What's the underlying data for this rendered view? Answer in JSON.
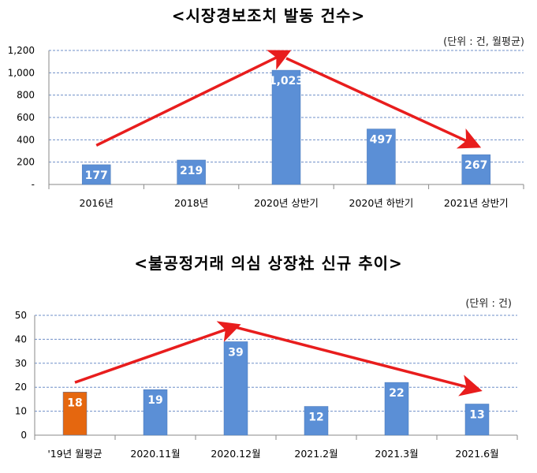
{
  "charts": [
    {
      "title": "<시장경보조치 발동 건수>",
      "unit_label": "(단위 : 건, 월평균)",
      "chart_data": {
        "type": "bar",
        "categories": [
          "2016년",
          "2018년",
          "2020년 상반기",
          "2020년 하반기",
          "2021년 상반기"
        ],
        "values": [
          177,
          219,
          1023,
          497,
          267
        ],
        "value_labels": [
          "177",
          "219",
          "1,023",
          "497",
          "267"
        ],
        "ylim": [
          0,
          1200
        ],
        "yticks": [
          0,
          200,
          400,
          600,
          800,
          1000,
          1200
        ],
        "ytick_labels": [
          "-",
          "200",
          "400",
          "600",
          "800",
          "1,000",
          "1,200"
        ],
        "grid": true,
        "bar_colors": [
          "#5b8fd6",
          "#5b8fd6",
          "#5b8fd6",
          "#5b8fd6",
          "#5b8fd6"
        ],
        "arrows": [
          {
            "from": [
              0,
              350
            ],
            "to": [
              2,
              1180
            ]
          },
          {
            "from": [
              2,
              1130
            ],
            "to": [
              4,
              350
            ]
          }
        ]
      }
    },
    {
      "title": "<불공정거래 의심 상장社 신규 추이>",
      "unit_label": "(단위 : 건)",
      "chart_data": {
        "type": "bar",
        "categories": [
          "'19년 월평균",
          "2020.11월",
          "2020.12월",
          "2021.2월",
          "2021.3월",
          "2021.6월"
        ],
        "values": [
          18,
          19,
          39,
          12,
          22,
          13
        ],
        "value_labels": [
          "18",
          "19",
          "39",
          "12",
          "22",
          "13"
        ],
        "ylim": [
          0,
          50
        ],
        "yticks": [
          0,
          10,
          20,
          30,
          40,
          50
        ],
        "ytick_labels": [
          "0",
          "10",
          "20",
          "30",
          "40",
          "50"
        ],
        "grid": true,
        "bar_colors": [
          "#e5670f",
          "#5b8fd6",
          "#5b8fd6",
          "#5b8fd6",
          "#5b8fd6",
          "#5b8fd6"
        ],
        "arrows": [
          {
            "from": [
              0,
              22
            ],
            "to": [
              2,
              45.5
            ]
          },
          {
            "from": [
              2,
              45
            ],
            "to": [
              5,
              19
            ]
          }
        ]
      }
    }
  ],
  "colors": {
    "grid": "#6f8fc8",
    "axis": "#8a8a8a",
    "arrow": "#e81d1d"
  }
}
